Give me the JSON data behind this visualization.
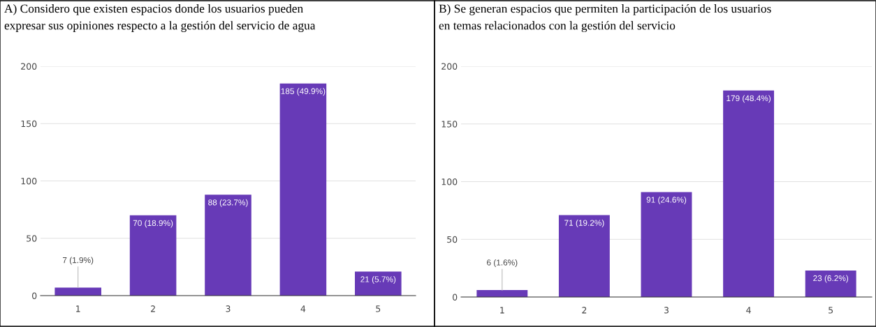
{
  "chart_data": [
    {
      "type": "bar",
      "title": "A) Considero que existen espacios donde los usuarios pueden\nexpresar sus opiniones respecto a la gestión del servicio de agua",
      "categories": [
        "1",
        "2",
        "3",
        "4",
        "5"
      ],
      "values": [
        7,
        70,
        88,
        185,
        21
      ],
      "value_labels": [
        "7 (1.9%)",
        "70 (18.9%)",
        "88 (23.7%)",
        "185 (49.9%)",
        "21 (5.7%)"
      ],
      "color": "#673ab7",
      "ylim": [
        0,
        200
      ],
      "yticks": [
        0,
        50,
        100,
        150,
        200
      ],
      "grid": "y"
    },
    {
      "type": "bar",
      "title": "B) Se generan espacios que permiten la participación de los usuarios\nen temas relacionados con la gestión del servicio",
      "categories": [
        "1",
        "2",
        "3",
        "4",
        "5"
      ],
      "values": [
        6,
        71,
        91,
        179,
        23
      ],
      "value_labels": [
        "6 (1.6%)",
        "71 (19.2%)",
        "91 (24.6%)",
        "179 (48.4%)",
        "23 (6.2%)"
      ],
      "color": "#673ab7",
      "ylim": [
        0,
        200
      ],
      "yticks": [
        0,
        50,
        100,
        150,
        200
      ],
      "grid": "y"
    }
  ]
}
